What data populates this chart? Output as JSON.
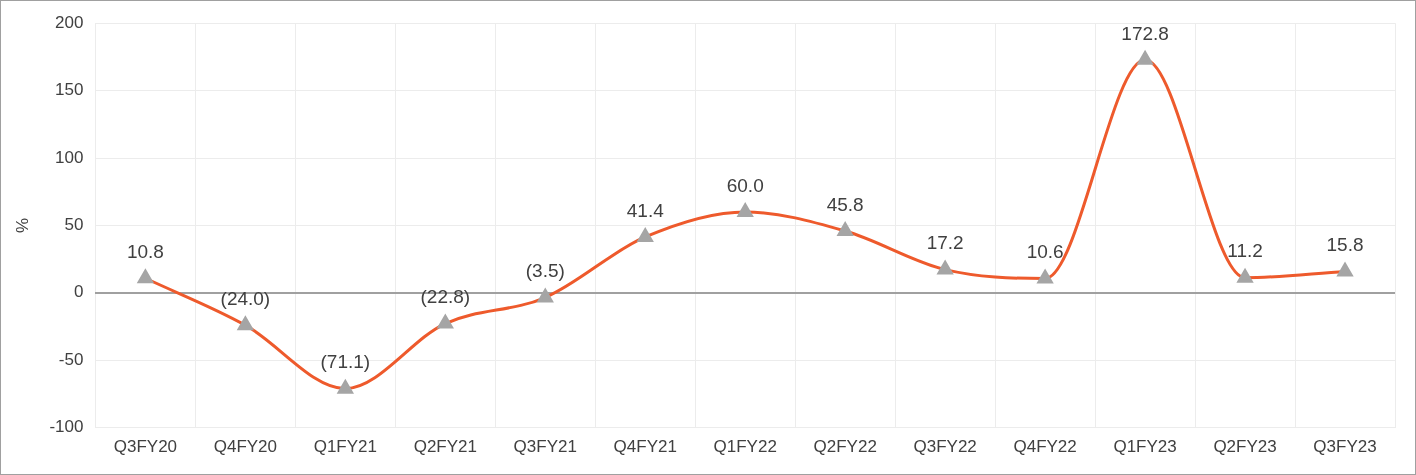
{
  "chart_data": {
    "type": "line",
    "ylabel": "%",
    "categories": [
      "Q3FY20",
      "Q4FY20",
      "Q1FY21",
      "Q2FY21",
      "Q3FY21",
      "Q4FY21",
      "Q1FY22",
      "Q2FY22",
      "Q3FY22",
      "Q4FY22",
      "Q1FY23",
      "Q2FY23",
      "Q3FY23"
    ],
    "series": [
      {
        "color": "#ee5a2c",
        "values": [
          10.8,
          -24.0,
          -71.1,
          -22.8,
          -3.5,
          41.4,
          60.0,
          45.8,
          17.2,
          10.6,
          172.8,
          11.2,
          15.8
        ],
        "value_labels": [
          "10.8",
          "(24.0)",
          "(71.1)",
          "(22.8)",
          "(3.5)",
          "41.4",
          "60.0",
          "45.8",
          "17.2",
          "10.6",
          "172.8",
          "11.2",
          "15.8"
        ]
      }
    ],
    "ylim": [
      -100,
      200
    ],
    "yticks": [
      -100,
      -50,
      0,
      50,
      100,
      150,
      200
    ],
    "grid": true,
    "legend": false,
    "marker": "triangle",
    "line_style": "solid"
  }
}
